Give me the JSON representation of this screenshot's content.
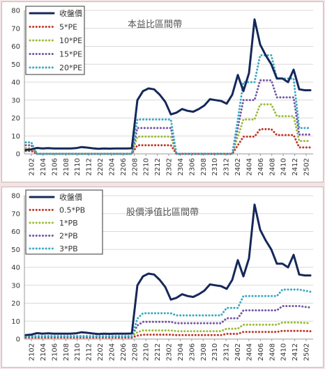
{
  "chart_data": [
    {
      "type": "line",
      "title": "本益比區間帶",
      "ylim": [
        0,
        80
      ],
      "yticks": [
        0,
        10,
        20,
        30,
        40,
        50,
        60,
        70,
        80
      ],
      "x_tick_labels": [
        "2102",
        "2104",
        "2106",
        "2108",
        "2110",
        "2112",
        "2202",
        "2204",
        "2206",
        "2208",
        "2210",
        "2212",
        "2302",
        "2304",
        "2306",
        "2308",
        "2310",
        "2312",
        "2402",
        "2404",
        "2406",
        "2408",
        "2410",
        "2412",
        "2502"
      ],
      "legend_position": "top-left",
      "series": [
        {
          "name": "收盤價",
          "color": "#15285a",
          "style": "solid",
          "values": [
            2.2,
            2.5,
            3.3,
            3.0,
            3.2,
            3.0,
            3.0,
            3.0,
            3.0,
            3.2,
            3.8,
            3.5,
            3.1,
            2.8,
            3.0,
            2.9,
            3.0,
            3.0,
            3.0,
            3.1,
            30,
            35,
            36.5,
            36,
            33,
            29,
            22,
            23,
            25,
            24,
            23.5,
            25,
            27,
            30.5,
            30,
            29.5,
            28,
            33,
            44,
            35,
            45,
            75,
            61,
            55,
            50,
            42,
            42,
            40,
            47,
            36,
            35.5,
            35.5
          ]
        },
        {
          "name": "5*PE",
          "color": "#c0392b",
          "style": "dotted",
          "values": [
            1.6,
            1.6,
            0,
            0,
            0,
            0,
            0,
            0,
            0,
            0,
            0,
            0,
            0,
            0,
            0,
            0,
            0,
            0,
            0,
            0,
            4.8,
            4.8,
            4.8,
            4.8,
            4.8,
            4.8,
            4.8,
            0,
            0,
            0,
            0,
            0,
            0,
            0,
            0,
            0,
            0,
            0,
            4.8,
            9.6,
            9.6,
            9.6,
            13.8,
            13.8,
            13.8,
            10.5,
            10.5,
            10.5,
            10.5,
            3.6,
            3.6,
            3.6
          ]
        },
        {
          "name": "10*PE",
          "color": "#9cbb3b",
          "style": "dotted",
          "values": [
            3.2,
            3.2,
            0,
            0,
            0,
            0,
            0,
            0,
            0,
            0,
            0,
            0,
            0,
            0,
            0,
            0,
            0,
            0,
            0,
            0,
            9.6,
            9.6,
            9.6,
            9.6,
            9.6,
            9.6,
            9.6,
            0,
            0,
            0,
            0,
            0,
            0,
            0,
            0,
            0,
            0,
            0,
            9.6,
            19.2,
            19.2,
            19.2,
            27.6,
            27.6,
            27.6,
            21,
            21,
            21,
            21,
            7.2,
            7.2,
            7.2
          ]
        },
        {
          "name": "15*PE",
          "color": "#7455a3",
          "style": "dotted",
          "values": [
            4.8,
            4.8,
            0,
            0,
            0,
            0,
            0,
            0,
            0,
            0,
            0,
            0,
            0,
            0,
            0,
            0,
            0,
            0,
            0,
            0,
            14.4,
            14.4,
            14.4,
            14.4,
            14.4,
            14.4,
            14.4,
            0,
            0,
            0,
            0,
            0,
            0,
            0,
            0,
            0,
            0,
            0,
            14.4,
            30,
            30,
            30,
            41,
            41,
            41,
            31.5,
            31.5,
            31.5,
            31.5,
            10.8,
            10.8,
            10.8
          ]
        },
        {
          "name": "20*PE",
          "color": "#3aa9c4",
          "style": "dotted",
          "values": [
            6.4,
            6.4,
            0,
            0,
            0,
            0,
            0,
            0,
            0,
            0,
            0,
            0,
            0,
            0,
            0,
            0,
            0,
            0,
            0,
            0,
            19.2,
            19.2,
            19.2,
            19.2,
            19.2,
            19.2,
            19.2,
            0,
            0,
            0,
            0,
            0,
            0,
            0,
            0,
            0,
            0,
            0,
            19.2,
            40,
            40,
            40,
            55,
            55,
            55,
            42,
            42,
            42,
            42,
            14.4,
            14.4,
            14.4
          ]
        }
      ]
    },
    {
      "type": "line",
      "title": "股價淨值比區間帶",
      "ylim": [
        0,
        80
      ],
      "yticks": [
        0,
        10,
        20,
        30,
        40,
        50,
        60,
        70,
        80
      ],
      "x_tick_labels": [
        "2102",
        "2104",
        "2106",
        "2108",
        "2110",
        "2112",
        "2202",
        "2204",
        "2206",
        "2208",
        "2210",
        "2212",
        "2302",
        "2304",
        "2306",
        "2308",
        "2310",
        "2312",
        "2402",
        "2404",
        "2406",
        "2408",
        "2410",
        "2412",
        "2502"
      ],
      "legend_position": "top-left",
      "series": [
        {
          "name": "收盤價",
          "color": "#15285a",
          "style": "solid",
          "values": [
            2.2,
            2.5,
            3.3,
            3.0,
            3.2,
            3.0,
            3.0,
            3.0,
            3.0,
            3.2,
            3.8,
            3.5,
            3.1,
            2.8,
            3.0,
            2.9,
            3.0,
            3.0,
            3.0,
            3.1,
            30,
            35,
            36.5,
            36,
            33,
            29,
            22,
            23,
            25,
            24,
            23.5,
            25,
            27,
            30.5,
            30,
            29.5,
            28,
            33,
            44,
            35,
            45,
            75,
            61,
            55,
            50,
            42,
            42,
            40,
            47,
            36,
            35.5,
            35.5
          ]
        },
        {
          "name": "0.5*PB",
          "color": "#c0392b",
          "style": "dotted",
          "values": [
            0.8,
            0.8,
            0.8,
            0.8,
            0.8,
            0.8,
            0.8,
            0.8,
            0.8,
            0.8,
            0.8,
            0.8,
            0.8,
            0.8,
            0.8,
            0.8,
            0.8,
            0.8,
            0.8,
            0.8,
            1.9,
            2.4,
            2.4,
            2.4,
            2.4,
            2.4,
            2.4,
            2.2,
            2.2,
            2.2,
            2.2,
            2.2,
            2.2,
            2.2,
            2.2,
            2.2,
            2.9,
            2.9,
            2.9,
            4.0,
            4.0,
            4.0,
            4.0,
            4.0,
            4.0,
            4.0,
            4.6,
            4.6,
            4.6,
            4.6,
            4.5,
            4.4
          ]
        },
        {
          "name": "1*PB",
          "color": "#9cbb3b",
          "style": "dotted",
          "values": [
            1.6,
            1.6,
            1.6,
            1.6,
            1.6,
            1.6,
            1.6,
            1.6,
            1.6,
            1.6,
            1.6,
            1.6,
            1.6,
            1.6,
            1.6,
            1.6,
            1.6,
            1.6,
            1.6,
            1.6,
            3.8,
            4.8,
            4.8,
            4.8,
            4.8,
            4.8,
            4.8,
            4.4,
            4.4,
            4.4,
            4.4,
            4.4,
            4.4,
            4.4,
            4.4,
            4.4,
            5.8,
            5.8,
            5.8,
            8.0,
            8.0,
            8.0,
            8.0,
            8.0,
            8.0,
            8.0,
            9.2,
            9.2,
            9.2,
            9.2,
            9.0,
            8.8
          ]
        },
        {
          "name": "2*PB",
          "color": "#7455a3",
          "style": "dotted",
          "values": [
            1.6,
            1.6,
            1.6,
            1.6,
            1.6,
            1.6,
            1.6,
            1.6,
            1.6,
            1.6,
            1.6,
            1.6,
            1.6,
            1.6,
            1.6,
            1.6,
            1.6,
            1.6,
            1.6,
            1.6,
            7.6,
            9.6,
            9.6,
            9.6,
            9.6,
            9.6,
            9.6,
            8.8,
            8.8,
            8.8,
            8.8,
            8.8,
            8.8,
            8.8,
            8.8,
            8.8,
            11.6,
            11.6,
            11.6,
            16.0,
            16.0,
            16.0,
            16.0,
            16.0,
            16.0,
            16.0,
            18.4,
            18.4,
            18.4,
            18.4,
            18.0,
            17.6
          ]
        },
        {
          "name": "3*PB",
          "color": "#3aa9c4",
          "style": "dotted",
          "values": [
            1.6,
            1.6,
            1.6,
            1.6,
            1.6,
            1.6,
            1.6,
            1.6,
            1.6,
            1.6,
            1.6,
            1.6,
            1.6,
            1.6,
            1.6,
            1.6,
            1.6,
            1.6,
            1.6,
            1.6,
            11.4,
            14.4,
            14.4,
            14.4,
            14.4,
            14.4,
            14.4,
            13.2,
            13.2,
            13.2,
            13.2,
            13.2,
            13.2,
            13.2,
            13.2,
            13.2,
            17.4,
            17.4,
            17.4,
            24.0,
            24.0,
            24.0,
            24.0,
            24.0,
            24.0,
            24.0,
            27.6,
            27.6,
            27.6,
            27.6,
            27.0,
            26.4
          ]
        }
      ]
    }
  ]
}
